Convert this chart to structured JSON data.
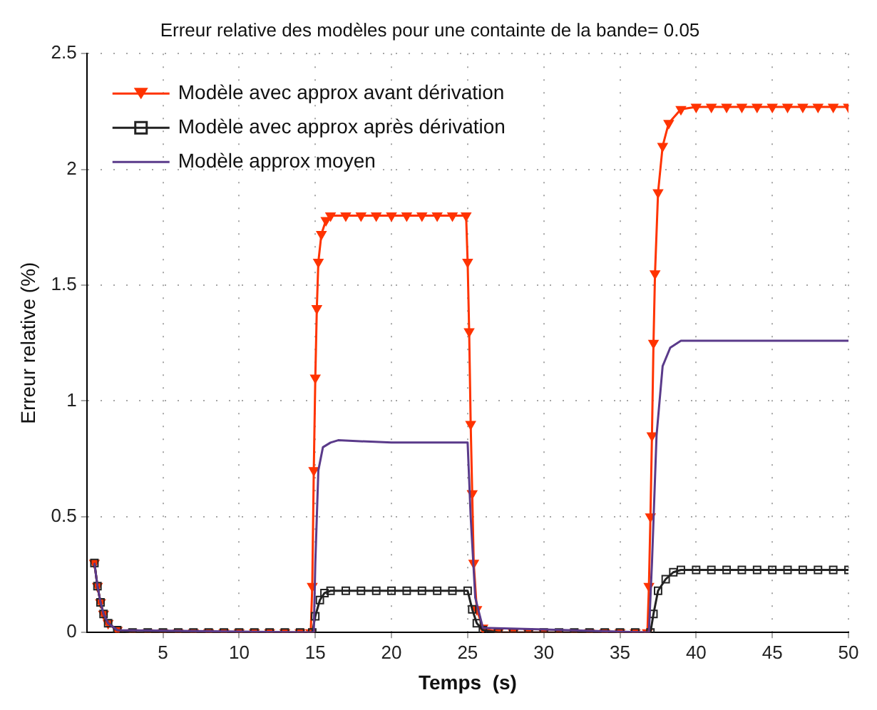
{
  "chart_data": {
    "type": "line",
    "title": "Erreur relative des modèles pour une containte de la bande= 0.05",
    "xlabel": "Temps  (s)",
    "ylabel": "Erreur relative (%)",
    "xlim": [
      0,
      50
    ],
    "xticks": [
      5,
      10,
      15,
      20,
      25,
      30,
      35,
      40,
      45,
      50
    ],
    "ylim": [
      0,
      2.5
    ],
    "yticks": [
      0,
      0.5,
      1,
      1.5,
      2,
      2.5
    ],
    "grid": true,
    "legend": "top left",
    "series": [
      {
        "name": "Modèle avec approx avant dérivation",
        "color": "#ff3300",
        "marker": "triangle",
        "x": [
          0.5,
          0.7,
          0.9,
          1.1,
          1.4,
          2,
          3,
          4,
          5,
          6,
          7,
          8,
          9,
          10,
          11,
          12,
          13,
          14,
          14.7,
          14.8,
          14.9,
          15,
          15.1,
          15.2,
          15.4,
          15.7,
          16,
          17,
          18,
          19,
          20,
          21,
          22,
          23,
          24,
          24.9,
          25,
          25.1,
          25.2,
          25.3,
          25.4,
          25.6,
          26,
          27,
          28,
          29,
          30,
          31,
          32,
          33,
          34,
          35,
          36,
          36.8,
          36.9,
          37,
          37.1,
          37.2,
          37.3,
          37.5,
          37.8,
          38.2,
          39,
          40,
          41,
          42,
          43,
          44,
          45,
          46,
          47,
          48,
          49,
          50
        ],
        "values": [
          0.3,
          0.2,
          0.13,
          0.08,
          0.04,
          0.01,
          0,
          0,
          0,
          0,
          0,
          0,
          0,
          0,
          0,
          0,
          0,
          0,
          0,
          0.2,
          0.7,
          1.1,
          1.4,
          1.6,
          1.72,
          1.78,
          1.8,
          1.8,
          1.8,
          1.8,
          1.8,
          1.8,
          1.8,
          1.8,
          1.8,
          1.8,
          1.6,
          1.3,
          0.9,
          0.6,
          0.3,
          0.1,
          0.02,
          0,
          0,
          0,
          0,
          0,
          0,
          0,
          0,
          0,
          0,
          0,
          0.2,
          0.5,
          0.85,
          1.25,
          1.55,
          1.9,
          2.1,
          2.2,
          2.26,
          2.27,
          2.27,
          2.27,
          2.27,
          2.27,
          2.27,
          2.27,
          2.27,
          2.27,
          2.27,
          2.27
        ]
      },
      {
        "name": "Modèle avec approx après dérivation",
        "color": "#222222",
        "marker": "square",
        "x": [
          0.5,
          0.7,
          0.9,
          1.1,
          1.4,
          2,
          3,
          4,
          5,
          6,
          7,
          8,
          9,
          10,
          11,
          12,
          13,
          14,
          14.8,
          15,
          15.3,
          15.6,
          16,
          17,
          18,
          19,
          20,
          21,
          22,
          23,
          24,
          25,
          25.3,
          25.6,
          26,
          27,
          28,
          29,
          30,
          31,
          32,
          33,
          34,
          35,
          36,
          37,
          37.2,
          37.5,
          38,
          38.5,
          39,
          40,
          41,
          42,
          43,
          44,
          45,
          46,
          47,
          48,
          49,
          50
        ],
        "values": [
          0.3,
          0.2,
          0.13,
          0.08,
          0.04,
          0.01,
          0,
          0,
          0,
          0,
          0,
          0,
          0,
          0,
          0,
          0,
          0,
          0,
          0,
          0.07,
          0.14,
          0.17,
          0.18,
          0.18,
          0.18,
          0.18,
          0.18,
          0.18,
          0.18,
          0.18,
          0.18,
          0.18,
          0.1,
          0.04,
          0.01,
          0,
          0,
          0,
          0,
          0,
          0,
          0,
          0,
          0,
          0,
          0,
          0.08,
          0.18,
          0.23,
          0.26,
          0.27,
          0.27,
          0.27,
          0.27,
          0.27,
          0.27,
          0.27,
          0.27,
          0.27,
          0.27,
          0.27,
          0.27
        ]
      },
      {
        "name": "Modèle approx moyen",
        "color": "#5a3a8a",
        "marker": "none",
        "x": [
          0.5,
          0.7,
          0.9,
          1.1,
          1.4,
          2,
          14.9,
          15,
          15.2,
          15.5,
          16,
          16.5,
          20,
          25,
          25.2,
          25.5,
          26,
          36.9,
          37.1,
          37.4,
          37.8,
          38.3,
          39,
          50
        ],
        "values": [
          0.3,
          0.2,
          0.13,
          0.08,
          0.04,
          0.01,
          0,
          0.3,
          0.7,
          0.8,
          0.82,
          0.83,
          0.82,
          0.82,
          0.5,
          0.15,
          0.02,
          0,
          0.3,
          0.85,
          1.15,
          1.23,
          1.26,
          1.26
        ]
      }
    ]
  }
}
